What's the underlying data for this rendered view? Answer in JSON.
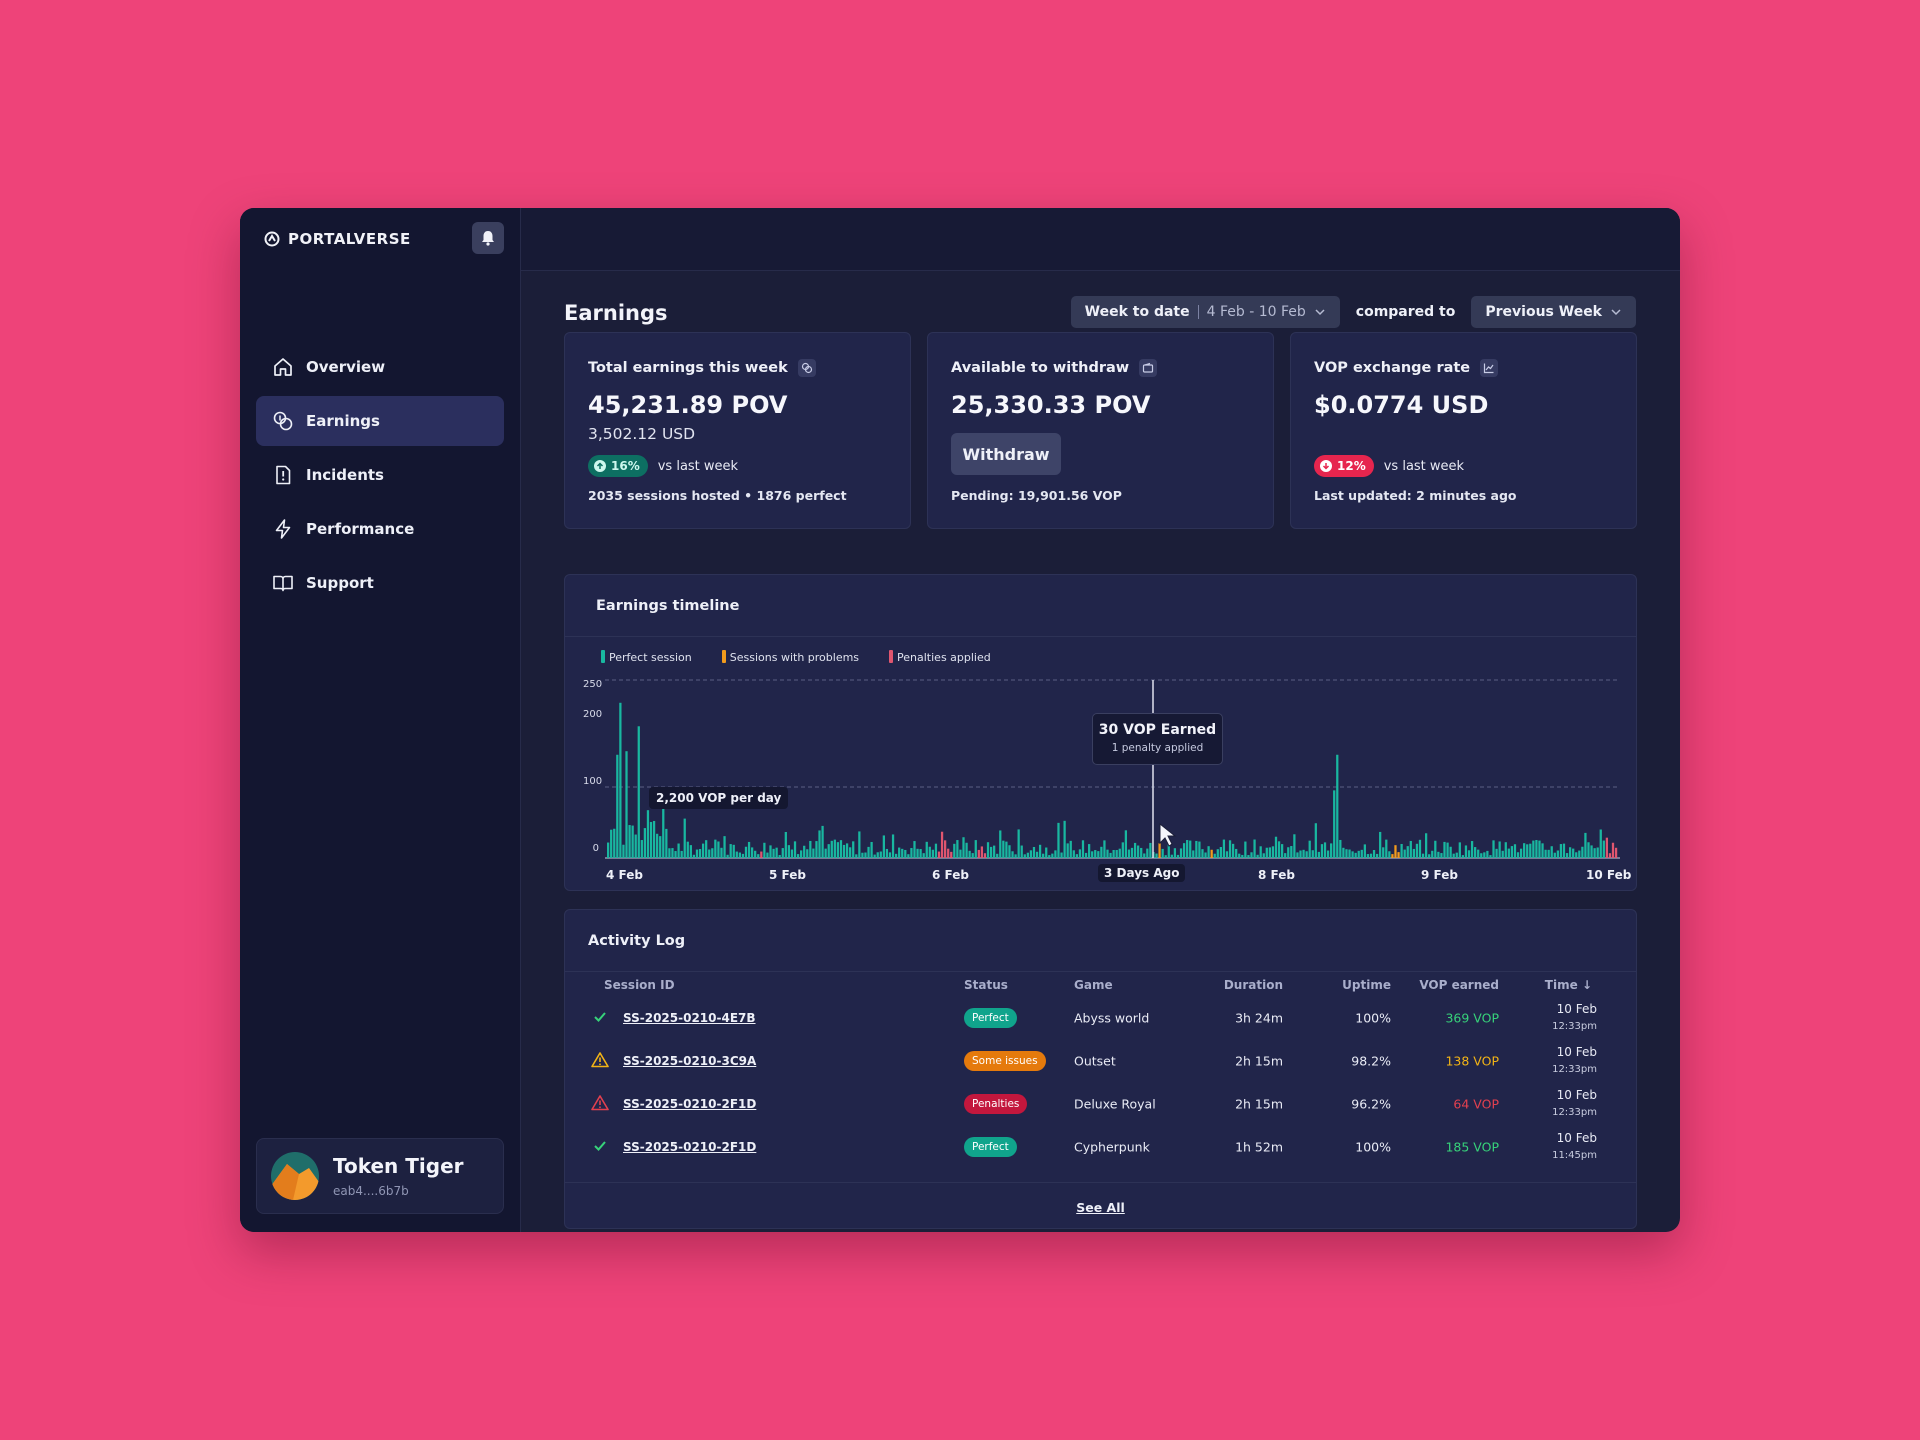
{
  "app": {
    "brand": "PORTALVERSE"
  },
  "sidebar": {
    "items": [
      {
        "label": "Overview",
        "icon": "home-icon",
        "active": false
      },
      {
        "label": "Earnings",
        "icon": "coins-icon",
        "active": true
      },
      {
        "label": "Incidents",
        "icon": "alert-file-icon",
        "active": false
      },
      {
        "label": "Performance",
        "icon": "bolt-icon",
        "active": false
      },
      {
        "label": "Support",
        "icon": "book-icon",
        "active": false
      }
    ],
    "user": {
      "name": "Token Tiger",
      "address": "eab4....6b7b"
    }
  },
  "header": {
    "title": "Earnings",
    "range_label": "Week to date",
    "range_value": "4 Feb - 10 Feb",
    "compared_to": "compared to",
    "compare_value": "Previous Week"
  },
  "kpis": {
    "total": {
      "title": "Total earnings this week",
      "value": "45,231.89 POV",
      "sub": "3,502.12 USD",
      "badge": "16%",
      "badge_text": "vs last week",
      "foot": "2035 sessions hosted • 1876 perfect"
    },
    "available": {
      "title": "Available to withdraw",
      "value": "25,330.33 POV",
      "button": "Withdraw",
      "foot": "Pending: 19,901.56 VOP"
    },
    "rate": {
      "title": "VOP exchange rate",
      "value": "$0.0774 USD",
      "badge": "12%",
      "badge_text": "vs last week",
      "foot": "Last updated: 2 minutes ago"
    }
  },
  "timeline": {
    "title": "Earnings timeline",
    "legend": [
      "Perfect session",
      "Sessions with problems",
      "Penalties applied"
    ],
    "tooltip_title": "30 VOP Earned",
    "tooltip_sub": "1 penalty applied",
    "day_label": "2,200 VOP per day"
  },
  "chart_data": {
    "type": "bar",
    "title": "Earnings timeline",
    "ylim": [
      0,
      250
    ],
    "yticks": [
      "0",
      "100",
      "200",
      "250"
    ],
    "xticks": [
      "4 Feb",
      "5 Feb",
      "6 Feb",
      "3 Days Ago",
      "8 Feb",
      "9 Feb",
      "10 Feb"
    ],
    "colors": {
      "perfect": "#19b7a0",
      "problems": "#f29b1d",
      "penalties": "#e0566f"
    },
    "notable_peaks": [
      {
        "x": "4 Feb",
        "value": 218
      },
      {
        "x": "4 Feb",
        "value": 185
      },
      {
        "x": "8 Feb",
        "value": 145
      }
    ],
    "hovered": {
      "x": "3 Days Ago",
      "value": 30
    }
  },
  "activity": {
    "title": "Activity Log",
    "columns": [
      "Session ID",
      "Status",
      "Game",
      "Duration",
      "Uptime",
      "VOP earned",
      "Time"
    ],
    "rows": [
      {
        "icon": "check-icon",
        "id": "SS-2025-0210-4E7B",
        "status": "Perfect",
        "game": "Abyss world",
        "duration": "3h 24m",
        "uptime": "100%",
        "vop": "369 VOP",
        "date": "10 Feb",
        "time": "12:33pm",
        "tone": "green"
      },
      {
        "icon": "warning-icon",
        "id": "SS-2025-0210-3C9A",
        "status": "Some issues",
        "game": "Outset",
        "duration": "2h 15m",
        "uptime": "98.2%",
        "vop": "138 VOP",
        "date": "10 Feb",
        "time": "12:33pm",
        "tone": "orange"
      },
      {
        "icon": "danger-icon",
        "id": "SS-2025-0210-2F1D",
        "status": "Penalties",
        "game": "Deluxe Royal",
        "duration": "2h 15m",
        "uptime": "96.2%",
        "vop": "64 VOP",
        "date": "10 Feb",
        "time": "12:33pm",
        "tone": "red"
      },
      {
        "icon": "check-icon",
        "id": "SS-2025-0210-2F1D",
        "status": "Perfect",
        "game": "Cypherpunk",
        "duration": "1h 52m",
        "uptime": "100%",
        "vop": "185 VOP",
        "date": "10 Feb",
        "time": "11:45pm",
        "tone": "green"
      }
    ],
    "see_all": "See All"
  }
}
